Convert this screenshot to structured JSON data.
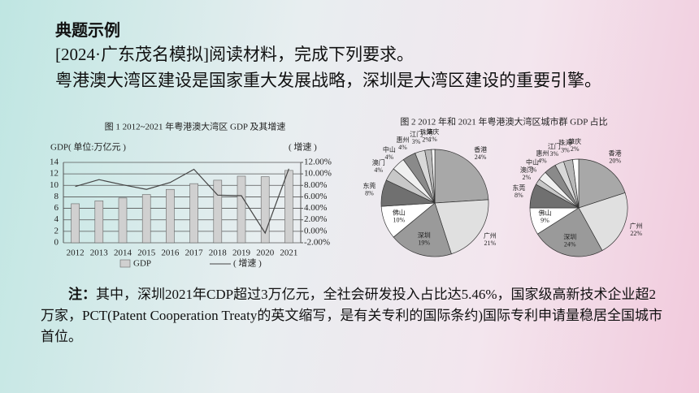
{
  "header": {
    "title": "典题示例",
    "source": "[2024·广东茂名模拟]阅读材料，完成下列要求。"
  },
  "intro": "粤港澳大湾区建设是国家重大发展战略，深圳是大湾区建设的重要引擎。",
  "note": {
    "label": "注：",
    "text": "其中，深圳2021年CDP超过3万亿元，全社会研发投入占比达5.46%，国家级高新技术企业超2万家，PCT(Patent Cooperation Treaty的英文缩写，是有关专利的国际条约)国际专利申请量稳居全国城市首位。"
  },
  "chart_data": [
    {
      "type": "bar",
      "title": "图 1 2012~2021 年粤港澳大湾区 GDP 及其增速",
      "y_label": "GDP( 单位:万亿元 )",
      "y2_label": "( 增速 )",
      "categories": [
        "2012",
        "2013",
        "2014",
        "2015",
        "2016",
        "2017",
        "2018",
        "2019",
        "2020",
        "2021"
      ],
      "series": [
        {
          "name": "GDP",
          "color": "#d0d0d0",
          "values": [
            6.8,
            7.3,
            7.8,
            8.4,
            9.3,
            10.3,
            10.9,
            11.6,
            11.5,
            12.6
          ]
        },
        {
          "name": "( 增速 )",
          "type": "line",
          "axis": "y2",
          "color": "#444444",
          "values": [
            7.8,
            9.0,
            8.1,
            7.3,
            8.5,
            10.8,
            6.3,
            6.2,
            -0.3,
            10.9
          ]
        }
      ],
      "ylim": [
        0,
        14
      ],
      "yticks": [
        0,
        2,
        4,
        6,
        8,
        10,
        12,
        14
      ],
      "y2lim": [
        -2,
        12
      ],
      "y2ticks": [
        {
          "value": -2,
          "label": "-2.00%"
        },
        {
          "value": 0,
          "label": "0.00%"
        },
        {
          "value": 2,
          "label": "2.00%"
        },
        {
          "value": 4,
          "label": "4.00%"
        },
        {
          "value": 6,
          "label": "6.00%"
        },
        {
          "value": 8,
          "label": "8.00%"
        },
        {
          "value": 10,
          "label": "10.00%"
        },
        {
          "value": 12,
          "label": "12.00%"
        }
      ],
      "grid": true
    },
    {
      "type": "pie",
      "title": "图 2 2012 年和 2021 年粤港澳大湾区城市群 GDP 占比",
      "categories": [
        "香港",
        "广州",
        "深圳",
        "佛山",
        "东莞",
        "澳门",
        "中山",
        "惠州",
        "江门",
        "珠海",
        "肇庆"
      ],
      "values": [
        24,
        21,
        19,
        10,
        8,
        4,
        4,
        4,
        3,
        2,
        1
      ],
      "value_labels": [
        "24%",
        "21%",
        "19%",
        "10%",
        "8%",
        "4%",
        "4%",
        "4%",
        "3%",
        "2%",
        "1%"
      ],
      "colors": [
        "#a8a8a8",
        "#e0e0e0",
        "#9a9a9a",
        "#ffffff",
        "#707070",
        "#c8c8c8",
        "#f0f0f0",
        "#8a8a8a",
        "#d8d8d8",
        "#b8b8b8",
        "#ffffff"
      ]
    },
    {
      "type": "pie",
      "categories": [
        "香港",
        "广州",
        "深圳",
        "佛山",
        "东莞",
        "澳门",
        "中山",
        "惠州",
        "江门",
        "珠海",
        "肇庆"
      ],
      "values": [
        20,
        22,
        24,
        9,
        8,
        2,
        3,
        4,
        3,
        3,
        2
      ],
      "value_labels": [
        "20%",
        "22%",
        "24%",
        "9%",
        "8%",
        "2%",
        "3%",
        "4%",
        "3%",
        "3%",
        "2%"
      ],
      "colors": [
        "#a8a8a8",
        "#e0e0e0",
        "#9a9a9a",
        "#ffffff",
        "#707070",
        "#c8c8c8",
        "#f0f0f0",
        "#8a8a8a",
        "#d8d8d8",
        "#b8b8b8",
        "#ffffff"
      ]
    }
  ]
}
